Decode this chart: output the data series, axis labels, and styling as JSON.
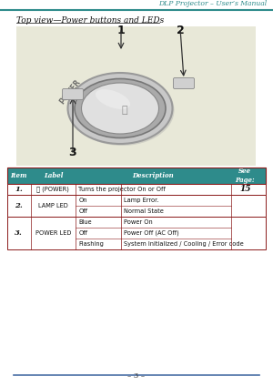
{
  "page_title": "DLP Projector – User’s Manual",
  "section_title": "Top view—Power buttons and LEDs",
  "page_number": "3",
  "bg_color": "#ffffff",
  "header_line_color": "#2e8b8b",
  "footer_line_color": "#4a6fa5",
  "table_header_bg": "#2e8b8b",
  "table_border_color": "#8b1a1a",
  "image_bg": "#e8e8d8",
  "items": [
    {
      "item": "1.",
      "label": "⏻ (POWER)",
      "description": [
        [
          "Turns the projector On or Off"
        ]
      ],
      "see_page": "15",
      "rows": 1
    },
    {
      "item": "2.",
      "label": "LAMP LED",
      "description": [
        [
          "On",
          "Lamp Error."
        ],
        [
          "Off",
          "Normal State"
        ]
      ],
      "see_page": "",
      "rows": 2
    },
    {
      "item": "3.",
      "label": "POWER LED",
      "description": [
        [
          "Blue",
          "Power On"
        ],
        [
          "Off",
          "Power Off (AC Off)"
        ],
        [
          "Flashing",
          "System Initialized / Cooling / Error code"
        ]
      ],
      "see_page": "",
      "rows": 3
    }
  ]
}
